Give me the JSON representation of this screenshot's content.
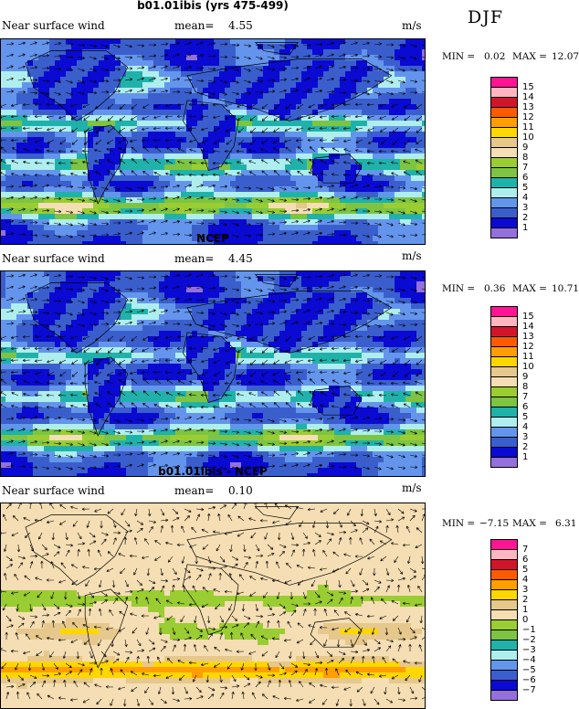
{
  "season_label": "DJF",
  "panels": [
    {
      "title": "b01.01ibis (yrs 475-499)",
      "variable": "Near surface wind",
      "mean_label": "mean=",
      "mean": "4.55",
      "units": "m/s",
      "min_label": "MIN =",
      "min": "0.02",
      "max_label": "MAX =",
      "max": "12.07"
    },
    {
      "title": "NCEP",
      "variable": "Near surface wind",
      "mean_label": "mean=",
      "mean": "4.45",
      "units": "m/s",
      "min_label": "MIN =",
      "min": "0.36",
      "max_label": "MAX =",
      "max": "10.71"
    },
    {
      "title": "b01.01ibis - NCEP",
      "variable": "Near surface wind",
      "mean_label": "mean=",
      "mean": "0.10",
      "units": "m/s",
      "min_label": "MIN =",
      "min": "−7.15",
      "max_label": "MAX =",
      "max": "6.31"
    }
  ],
  "colorbars": [
    {
      "labels": [
        "15",
        "14",
        "13",
        "12",
        "11",
        "10",
        "9",
        "8",
        "7",
        "6",
        "5",
        "4",
        "3",
        "2",
        "1"
      ],
      "colors": [
        "#ff1493",
        "#ffb6c1",
        "#d2142a",
        "#ff5a00",
        "#ff9e00",
        "#ffd700",
        "#e6c88c",
        "#f5deb3",
        "#9acd32",
        "#7dc443",
        "#20b2aa",
        "#afeeee",
        "#6495ed",
        "#3a5fcd",
        "#0a0ad2",
        "#9370db"
      ]
    },
    {
      "labels": [
        "15",
        "14",
        "13",
        "12",
        "11",
        "10",
        "9",
        "8",
        "7",
        "6",
        "5",
        "4",
        "3",
        "2",
        "1"
      ],
      "colors": [
        "#ff1493",
        "#ffb6c1",
        "#d2142a",
        "#ff5a00",
        "#ff9e00",
        "#ffd700",
        "#e6c88c",
        "#f5deb3",
        "#9acd32",
        "#7dc443",
        "#20b2aa",
        "#afeeee",
        "#6495ed",
        "#3a5fcd",
        "#0a0ad2",
        "#9370db"
      ]
    },
    {
      "labels": [
        "7",
        "6",
        "5",
        "4",
        "3",
        "2",
        "1",
        "0",
        "−1",
        "−2",
        "−3",
        "−4",
        "−5",
        "−6",
        "−7"
      ],
      "colors": [
        "#ff1493",
        "#ffb6c1",
        "#d2142a",
        "#ff5a00",
        "#ff9e00",
        "#ffd700",
        "#e6c88c",
        "#f5deb3",
        "#9acd32",
        "#7dc443",
        "#20b2aa",
        "#afeeee",
        "#6495ed",
        "#3a5fcd",
        "#0a0ad2",
        "#9370db"
      ]
    }
  ],
  "chart_data": [
    {
      "type": "heatmap",
      "title": "b01.01ibis (yrs 475-499)",
      "variable": "Near surface wind",
      "units": "m/s",
      "mean": 4.55,
      "min": 0.02,
      "max": 12.07,
      "contour_levels": [
        1,
        2,
        3,
        4,
        5,
        6,
        7,
        8,
        9,
        10,
        11,
        12,
        13,
        14,
        15
      ],
      "overlay": "wind vectors"
    },
    {
      "type": "heatmap",
      "title": "NCEP",
      "variable": "Near surface wind",
      "units": "m/s",
      "mean": 4.45,
      "min": 0.36,
      "max": 10.71,
      "contour_levels": [
        1,
        2,
        3,
        4,
        5,
        6,
        7,
        8,
        9,
        10,
        11,
        12,
        13,
        14,
        15
      ],
      "overlay": "wind vectors"
    },
    {
      "type": "heatmap",
      "title": "b01.01ibis - NCEP",
      "variable": "Near surface wind",
      "units": "m/s",
      "mean": 0.1,
      "min": -7.15,
      "max": 6.31,
      "contour_levels": [
        -7,
        -6,
        -5,
        -4,
        -3,
        -2,
        -1,
        0,
        1,
        2,
        3,
        4,
        5,
        6,
        7
      ],
      "overlay": "wind vectors"
    }
  ]
}
